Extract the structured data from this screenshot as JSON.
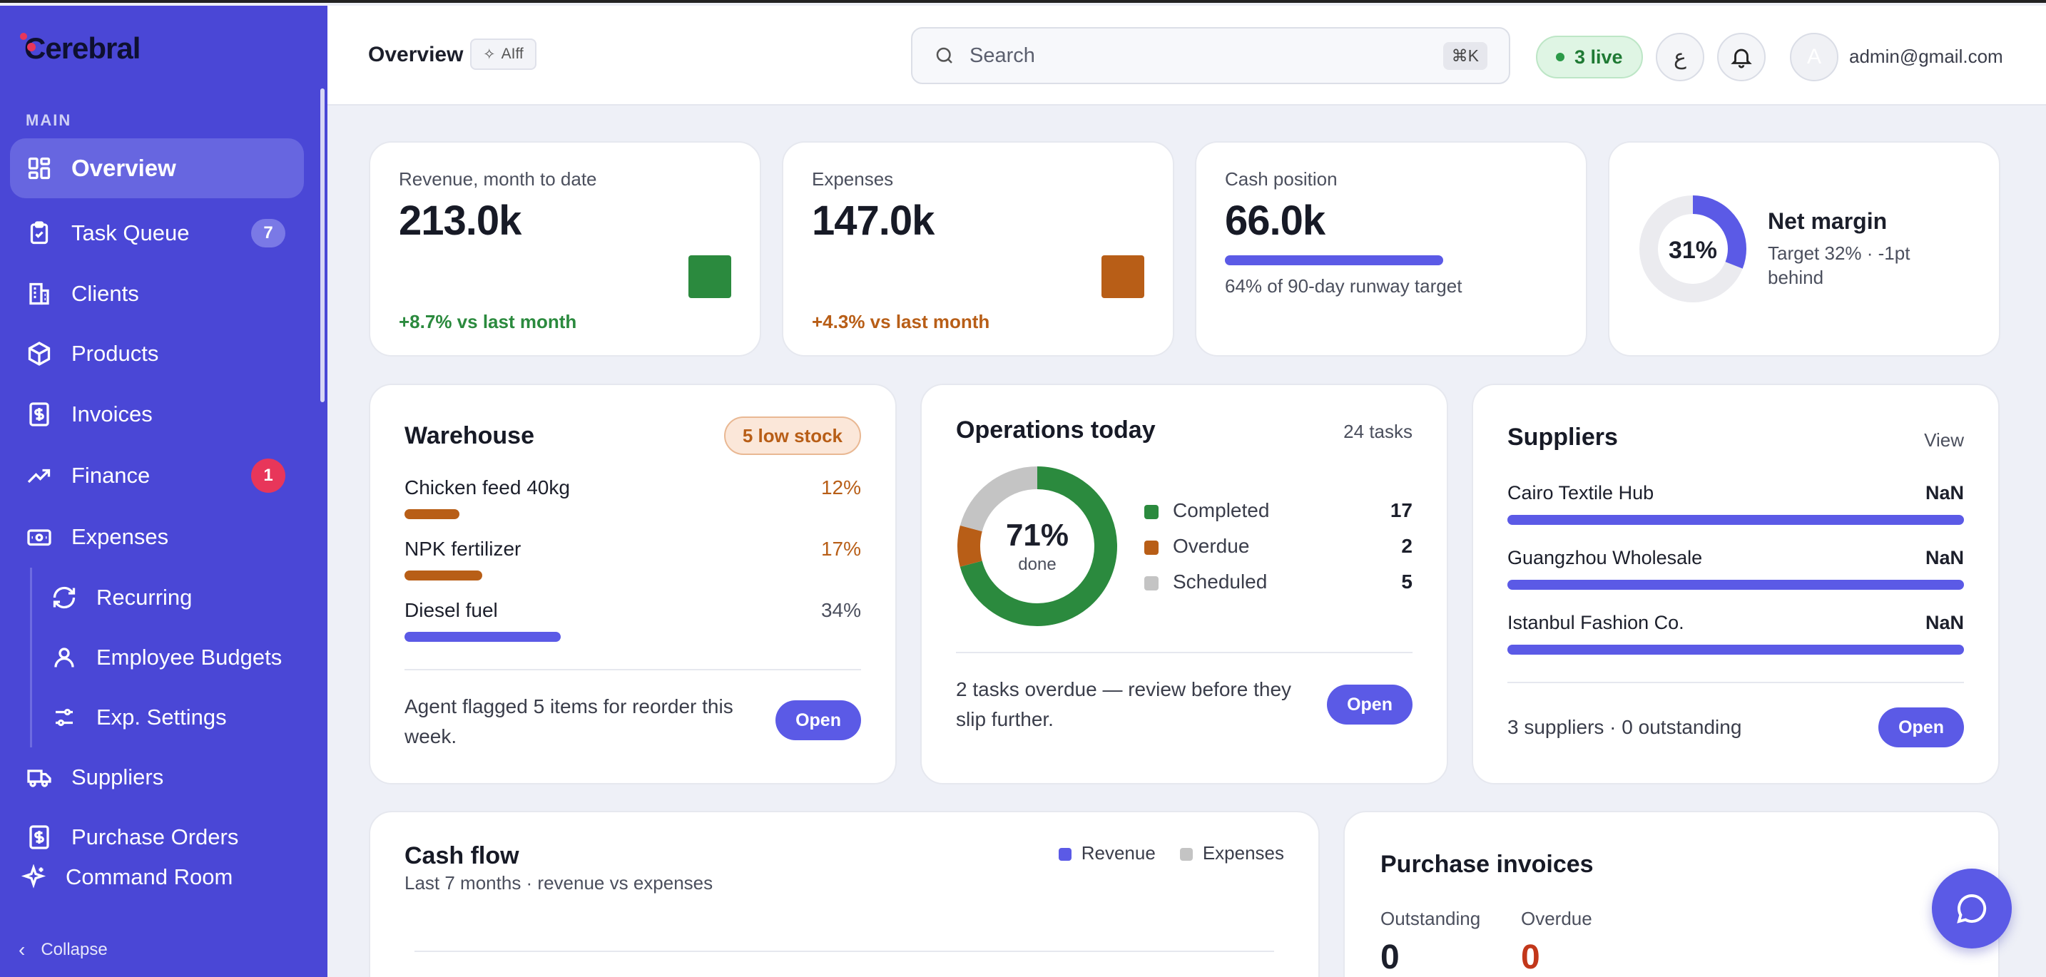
{
  "app": {
    "name": "Cerebral"
  },
  "sidebar": {
    "section": "MAIN",
    "items": [
      {
        "label": "Overview",
        "icon": "grid-icon"
      },
      {
        "label": "Task Queue",
        "icon": "clipboard-icon",
        "badge": "7"
      },
      {
        "label": "Clients",
        "icon": "building-icon"
      },
      {
        "label": "Products",
        "icon": "box-icon"
      },
      {
        "label": "Invoices",
        "icon": "invoice-icon"
      },
      {
        "label": "Finance",
        "icon": "trend-icon",
        "badge": "1"
      },
      {
        "label": "Expenses",
        "icon": "wallet-icon"
      },
      {
        "label": "Recurring",
        "icon": "refresh-icon"
      },
      {
        "label": "Employee Budgets",
        "icon": "user-icon"
      },
      {
        "label": "Exp. Settings",
        "icon": "sliders-icon"
      },
      {
        "label": "Suppliers",
        "icon": "truck-icon"
      },
      {
        "label": "Purchase Orders",
        "icon": "invoice-icon"
      },
      {
        "label": "Command Room",
        "icon": "sparkle-icon"
      }
    ],
    "collapse": "Collapse"
  },
  "header": {
    "title": "Overview",
    "chip": "AIff",
    "search_placeholder": "Search",
    "shortcut": "⌘K",
    "live": "3 live",
    "lang": "ع",
    "avatar": "A",
    "email": "admin@gmail.com"
  },
  "kpis": {
    "revenue": {
      "label": "Revenue, month to date",
      "value": "213.0k",
      "delta": "+8.7% vs last month"
    },
    "expenses": {
      "label": "Expenses",
      "value": "147.0k",
      "delta": "+4.3% vs last month"
    },
    "cash": {
      "label": "Cash position",
      "value": "66.0k",
      "note": "64% of 90-day runway target",
      "progress": 0.64
    },
    "margin": {
      "value": "31%",
      "title": "Net margin",
      "note": "Target 32% · -1pt behind",
      "fraction": 0.31
    }
  },
  "warehouse": {
    "title": "Warehouse",
    "badge": "5 low stock",
    "items": [
      {
        "name": "Chicken feed 40kg",
        "pct": "12%",
        "level": 0.12
      },
      {
        "name": "NPK fertilizer",
        "pct": "17%",
        "level": 0.17
      },
      {
        "name": "Diesel fuel",
        "pct": "34%",
        "level": 0.34
      }
    ],
    "note": "Agent flagged 5 items for reorder this week.",
    "button": "Open"
  },
  "operations": {
    "title": "Operations today",
    "count": "24 tasks",
    "center": "71%",
    "center_sub": "done",
    "legend": [
      {
        "label": "Completed",
        "value": "17"
      },
      {
        "label": "Overdue",
        "value": "2"
      },
      {
        "label": "Scheduled",
        "value": "5"
      }
    ],
    "note": "2 tasks overdue — review before they slip further.",
    "button": "Open"
  },
  "suppliers": {
    "title": "Suppliers",
    "link": "View",
    "items": [
      {
        "name": "Cairo Textile Hub",
        "value": "NaN"
      },
      {
        "name": "Guangzhou Wholesale",
        "value": "NaN"
      },
      {
        "name": "Istanbul Fashion Co.",
        "value": "NaN"
      }
    ],
    "note": "3 suppliers · 0 outstanding",
    "button": "Open"
  },
  "cashflow": {
    "title": "Cash flow",
    "subtitle": "Last 7 months · revenue vs expenses",
    "legend_revenue": "Revenue",
    "legend_expenses": "Expenses"
  },
  "purchase_invoices": {
    "title": "Purchase invoices",
    "outstanding_label": "Outstanding",
    "outstanding_value": "0",
    "overdue_label": "Overdue",
    "overdue_value": "0"
  },
  "colors": {
    "accent": "#5b5ae6",
    "sidebar": "#4a47d6",
    "green": "#2b8a3e",
    "orange": "#b85e17",
    "gray": "#c4c4c4",
    "red": "#e8365a"
  }
}
